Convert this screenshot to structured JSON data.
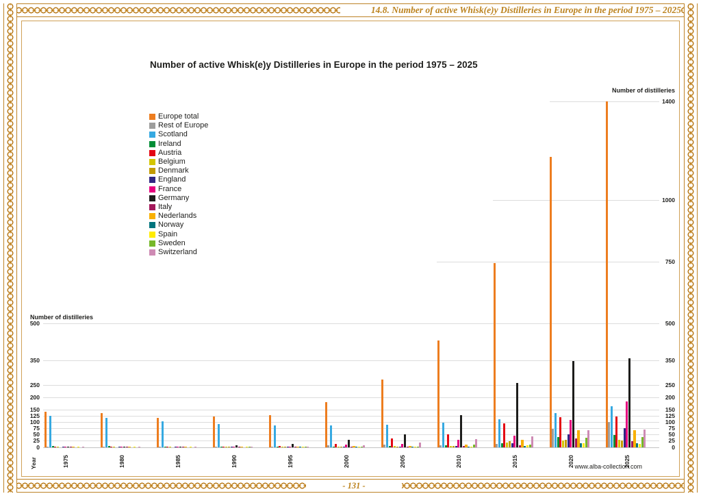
{
  "page": {
    "header_title": "14.8. Number of active Whisk(e)y Distilleries in Europe in the period 1975 – 2025",
    "page_number": "- 131 -",
    "website": "www.alba-collection.com",
    "border_color": "#bd8226"
  },
  "chart_data": {
    "type": "bar",
    "title": "Number of active Whisk(e)y Distilleries in Europe in the period 1975 – 2025",
    "axis_label_left": "Number of distilleries",
    "axis_label_right": "Number of distilleries",
    "xlabel": "Year",
    "legend_position": "left",
    "grid": true,
    "ylim": [
      0,
      1400
    ],
    "categories": [
      "1975",
      "1980",
      "1985",
      "1990",
      "1995",
      "2000",
      "2005",
      "2010",
      "2015",
      "2020",
      "2025"
    ],
    "left_axis_ticks": [
      500,
      350,
      250,
      200,
      150,
      125,
      100,
      75,
      50,
      25,
      0
    ],
    "right_axis_ticks": [
      1400,
      1000,
      750,
      500,
      350,
      250,
      200,
      150,
      125,
      100,
      75,
      50,
      25,
      0
    ],
    "gridlines": {
      "full": [
        0,
        25,
        50,
        75,
        100,
        125,
        150,
        200,
        250,
        350,
        500
      ],
      "partial": [
        {
          "value": 750,
          "start_frac": 0.639
        },
        {
          "value": 1000,
          "start_frac": 0.73
        },
        {
          "value": 1400,
          "start_frac": 0.822
        }
      ]
    },
    "series": [
      {
        "name": "Europe total",
        "color": "#ED7D1F",
        "values": [
          145,
          140,
          120,
          125,
          130,
          182,
          275,
          432,
          745,
          1175,
          1400
        ]
      },
      {
        "name": "Rest of Europe",
        "color": "#9D9D9C",
        "values": [
          2,
          2,
          2,
          2,
          4,
          8,
          12,
          8,
          15,
          75,
          102
        ]
      },
      {
        "name": "Scotland",
        "color": "#36A9E1",
        "values": [
          127,
          120,
          104,
          95,
          88,
          88,
          92,
          100,
          115,
          140,
          165
        ]
      },
      {
        "name": "Ireland",
        "color": "#008D36",
        "values": [
          6,
          5,
          4,
          3,
          3,
          4,
          5,
          8,
          18,
          42,
          50
        ]
      },
      {
        "name": "Austria",
        "color": "#E30613",
        "values": [
          1,
          1,
          1,
          2,
          6,
          14,
          35,
          54,
          97,
          122,
          124
        ]
      },
      {
        "name": "Belgium",
        "color": "#D4C500",
        "values": [
          1,
          1,
          1,
          1,
          2,
          3,
          5,
          6,
          20,
          28,
          30
        ]
      },
      {
        "name": "Denmark",
        "color": "#C39B00",
        "values": [
          0,
          0,
          0,
          1,
          2,
          2,
          4,
          5,
          25,
          30,
          27
        ]
      },
      {
        "name": "England",
        "color": "#312783",
        "values": [
          1,
          1,
          2,
          2,
          2,
          3,
          4,
          5,
          18,
          52,
          79
        ]
      },
      {
        "name": "France",
        "color": "#E6007E",
        "values": [
          2,
          2,
          2,
          2,
          3,
          10,
          15,
          30,
          48,
          112,
          187
        ]
      },
      {
        "name": "Germany",
        "color": "#1D1D1B",
        "values": [
          2,
          3,
          4,
          9,
          13,
          30,
          53,
          131,
          260,
          349,
          360
        ]
      },
      {
        "name": "Italy",
        "color": "#A3195B",
        "values": [
          1,
          1,
          1,
          1,
          2,
          3,
          4,
          6,
          9,
          35,
          25
        ]
      },
      {
        "name": "Nederlands",
        "color": "#F9B000",
        "values": [
          1,
          1,
          1,
          2,
          4,
          6,
          5,
          12,
          30,
          68,
          70
        ]
      },
      {
        "name": "Norway",
        "color": "#00747D",
        "values": [
          0,
          0,
          0,
          0,
          1,
          1,
          2,
          3,
          6,
          18,
          17
        ]
      },
      {
        "name": "Spain",
        "color": "#FFEC00",
        "values": [
          1,
          1,
          1,
          1,
          1,
          2,
          3,
          4,
          8,
          16,
          15
        ]
      },
      {
        "name": "Sweden",
        "color": "#76B82A",
        "values": [
          0,
          0,
          0,
          1,
          1,
          2,
          3,
          10,
          10,
          40,
          42
        ]
      },
      {
        "name": "Switzerland",
        "color": "#CE8BB4",
        "values": [
          1,
          1,
          1,
          2,
          3,
          8,
          19,
          34,
          45,
          70,
          72
        ]
      }
    ]
  }
}
